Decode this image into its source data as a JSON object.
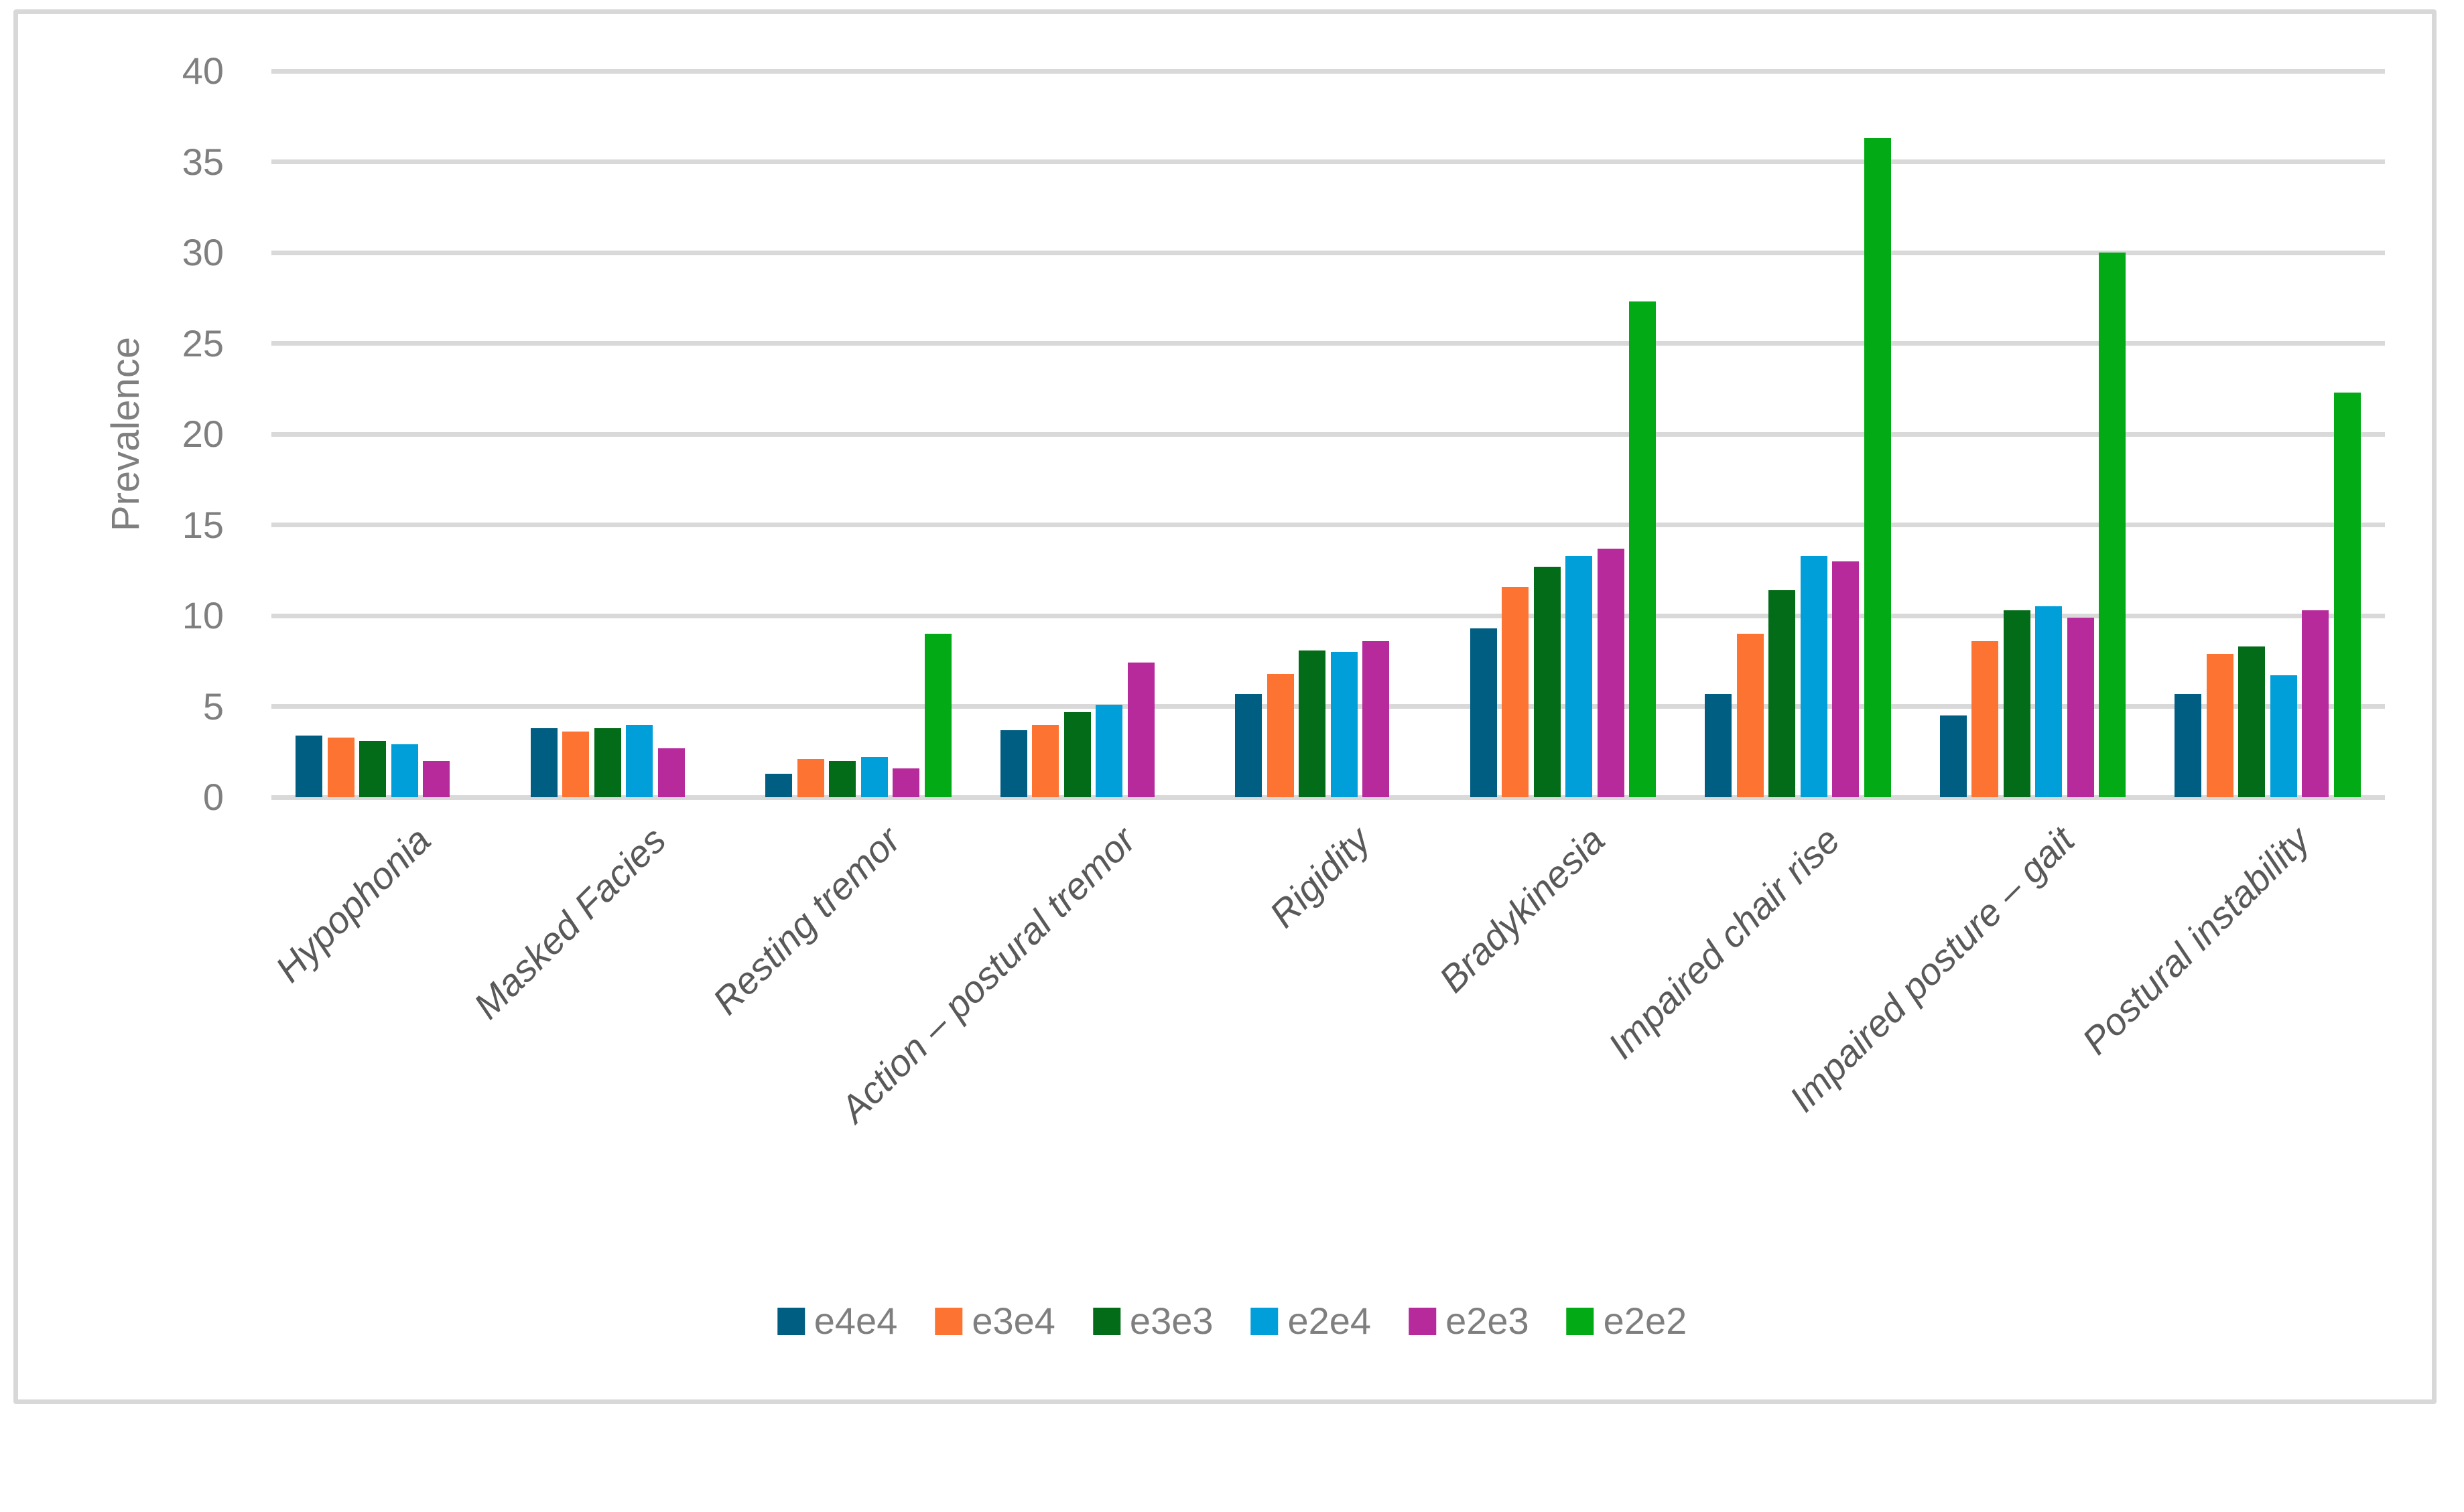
{
  "figure": {
    "background": "#FFFFFF",
    "border_color": "#D8D8D8",
    "gridline_color": "#D9D9D9",
    "axis_text_color": "#7F7F7F",
    "category_text_color": "#595959"
  },
  "chart_data": {
    "type": "bar",
    "title": "",
    "xlabel": "",
    "ylabel": "Prevalence",
    "ylim": [
      0,
      40
    ],
    "ytick_step": 5,
    "yticks": [
      0,
      5,
      10,
      15,
      20,
      25,
      30,
      35,
      40
    ],
    "grid": true,
    "legend_position": "bottom",
    "categories": [
      "Hypophonia",
      "Masked Facies",
      "Resting tremor",
      "Action – postural tremor",
      "Rigidity",
      "Bradykinesia",
      "Impaired chair rise",
      "Impaired posture – gait",
      "Postural instability"
    ],
    "series": [
      {
        "name": "e4e4",
        "color": "#005E82",
        "values": [
          3.4,
          3.8,
          1.3,
          3.7,
          5.7,
          9.3,
          5.7,
          4.5,
          5.7
        ]
      },
      {
        "name": "e3e4",
        "color": "#FD7332",
        "values": [
          3.3,
          3.6,
          2.1,
          4.0,
          6.8,
          11.6,
          9.0,
          8.6,
          7.9
        ]
      },
      {
        "name": "e3e3",
        "color": "#036C18",
        "values": [
          3.1,
          3.8,
          2.0,
          4.7,
          8.1,
          12.7,
          11.4,
          10.3,
          8.3
        ]
      },
      {
        "name": "e2e4",
        "color": "#009FD9",
        "values": [
          2.9,
          4.0,
          2.2,
          5.1,
          8.0,
          13.3,
          13.3,
          10.5,
          6.7
        ]
      },
      {
        "name": "e2e3",
        "color": "#B62A9B",
        "values": [
          2.0,
          2.7,
          1.6,
          7.4,
          8.6,
          13.7,
          13.0,
          9.9,
          10.3
        ]
      },
      {
        "name": "e2e2",
        "color": "#02AB15",
        "values": [
          0,
          0,
          9.0,
          0,
          0,
          27.3,
          36.3,
          30.0,
          22.3
        ]
      }
    ]
  }
}
